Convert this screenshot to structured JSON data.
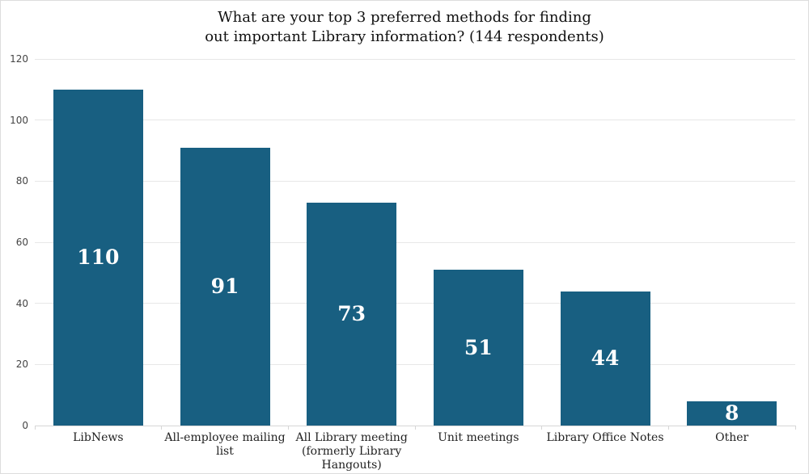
{
  "chart_data": {
    "type": "bar",
    "title": "What are your top 3 preferred methods for finding\nout important Library information? (144 respondents)",
    "categories": [
      "LibNews",
      "All-employee mailing list",
      "All Library meeting\n(formerly Library\nHangouts)",
      "Unit meetings",
      "Library Office Notes",
      "Other"
    ],
    "values": [
      110,
      91,
      73,
      51,
      44,
      8
    ],
    "value_labels": [
      "110",
      "91",
      "73",
      "51",
      "44",
      "8"
    ],
    "xlabel": "",
    "ylabel": "",
    "ylim": [
      0,
      120
    ],
    "yticks": [
      0,
      20,
      40,
      60,
      80,
      100,
      120
    ],
    "grid": true,
    "legend_position": "none",
    "colors": {
      "bar": "#185f81",
      "grid": "#e7e7e7",
      "axis": "#d6d6d6",
      "title_text": "#111111",
      "ytick_text": "#444444",
      "category_text": "#222222",
      "value_text": "#ffffff",
      "border": "#dddddd",
      "background": "#ffffff"
    }
  }
}
